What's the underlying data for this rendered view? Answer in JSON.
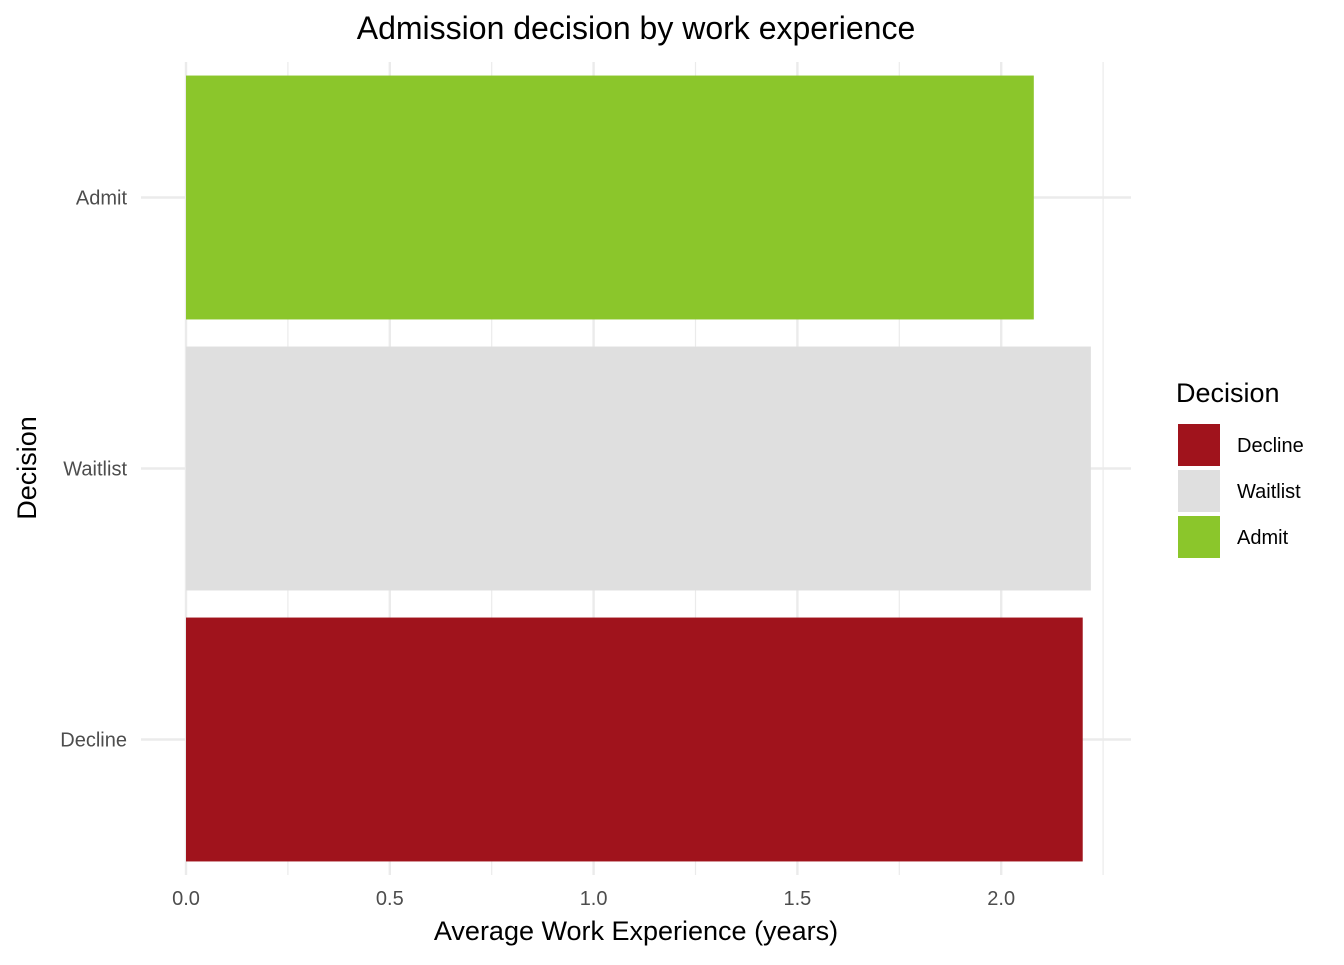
{
  "chart_data": {
    "type": "bar",
    "orientation": "horizontal",
    "title": "Admission decision by work experience",
    "xlabel": "Average Work Experience (years)",
    "ylabel": "Decision",
    "categories": [
      "Admit",
      "Waitlist",
      "Decline"
    ],
    "values": [
      2.08,
      2.22,
      2.2
    ],
    "colors": [
      "#8BC62B",
      "#DFDFDF",
      "#A0131C"
    ],
    "xlim": [
      0,
      2.32
    ],
    "x_ticks": [
      0.0,
      0.5,
      1.0,
      1.5,
      2.0
    ],
    "x_tick_labels": [
      "0.0",
      "0.5",
      "1.0",
      "1.5",
      "2.0"
    ],
    "grid": true,
    "legend": {
      "title": "Decision",
      "position": "right",
      "items": [
        {
          "label": "Decline",
          "color": "#A0131C"
        },
        {
          "label": "Waitlist",
          "color": "#DFDFDF"
        },
        {
          "label": "Admit",
          "color": "#8BC62B"
        }
      ]
    }
  }
}
